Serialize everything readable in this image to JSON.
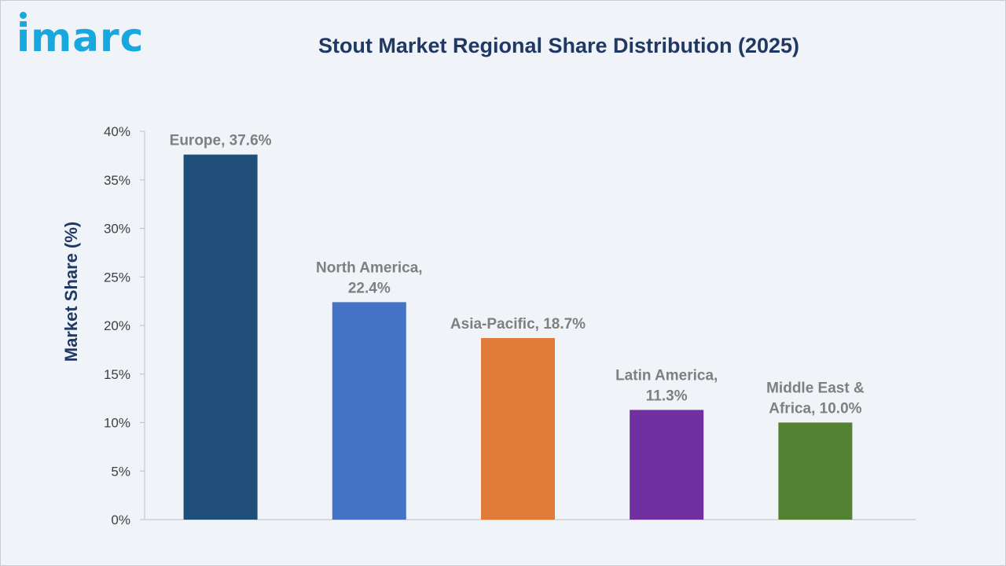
{
  "brand": {
    "logo_text": "imarc"
  },
  "chart_data": {
    "type": "bar",
    "title": "Stout Market Regional Share Distribution (2025)",
    "xlabel": "",
    "ylabel": "Market Share (%)",
    "ylim": [
      0,
      40
    ],
    "yticks": [
      "0%",
      "5%",
      "10%",
      "15%",
      "20%",
      "25%",
      "30%",
      "35%",
      "40%"
    ],
    "categories": [
      "Europe",
      "North America",
      "Asia-Pacific",
      "Latin America",
      "Middle East & Africa"
    ],
    "values": [
      37.6,
      22.4,
      18.7,
      11.3,
      10.0
    ],
    "data_labels": [
      [
        "Europe, 37.6%"
      ],
      [
        "North America,",
        "22.4%"
      ],
      [
        "Asia-Pacific, 18.7%"
      ],
      [
        "Latin America,",
        "11.3%"
      ],
      [
        "Middle East &",
        "Africa, 10.0%"
      ]
    ],
    "colors": [
      "#1f4e79",
      "#4472c4",
      "#e07b39",
      "#7030a0",
      "#548235"
    ],
    "grid": false,
    "legend": "none"
  }
}
